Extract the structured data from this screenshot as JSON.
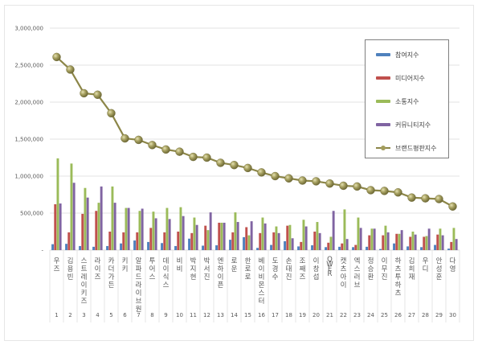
{
  "chart_data": {
    "type": "bar+line",
    "title": "",
    "xlabel": "",
    "ylabel": "",
    "ylim": [
      0,
      3000000
    ],
    "yticks": [
      "-",
      "500,000",
      "1,000,000",
      "1,500,000",
      "2,000,000",
      "2,500,000",
      "3,000,000"
    ],
    "grid": true,
    "legend_position": "upper right (inside)",
    "categories": [
      "우즈",
      "김용빈",
      "스트레이키즈",
      "라이즈",
      "카더가든",
      "키키",
      "알파드라이브원",
      "투어스",
      "데이식스",
      "비비",
      "박지현",
      "박서진",
      "엔하이픈",
      "로운",
      "한로로",
      "베이비몬스터",
      "도경수",
      "손태진",
      "조째즈",
      "이창섭",
      "QWER",
      "캣츠아이",
      "엑스러브",
      "정승환",
      "이무진",
      "하츠투하츠",
      "김희재",
      "우디",
      "안성훈",
      "다영"
    ],
    "ranks": [
      1,
      2,
      3,
      4,
      5,
      6,
      7,
      8,
      9,
      10,
      11,
      12,
      13,
      14,
      15,
      16,
      17,
      18,
      19,
      20,
      21,
      22,
      23,
      24,
      25,
      26,
      27,
      28,
      29,
      30
    ],
    "series": [
      {
        "name": "참여지수",
        "type": "bar",
        "color": "#4f81bd",
        "values": [
          80000,
          85000,
          55000,
          45000,
          55000,
          90000,
          130000,
          110000,
          95000,
          55000,
          155000,
          60000,
          65000,
          140000,
          175000,
          30000,
          70000,
          120000,
          50000,
          65000,
          40000,
          45000,
          40000,
          45000,
          15000,
          90000,
          50000,
          40000,
          70000,
          20000
        ]
      },
      {
        "name": "미디어지수",
        "type": "bar",
        "color": "#c0504d",
        "values": [
          620000,
          240000,
          490000,
          530000,
          250000,
          240000,
          240000,
          300000,
          240000,
          250000,
          230000,
          330000,
          370000,
          240000,
          310000,
          230000,
          240000,
          330000,
          110000,
          250000,
          100000,
          90000,
          70000,
          200000,
          200000,
          220000,
          180000,
          180000,
          210000,
          110000
        ]
      },
      {
        "name": "소통지수",
        "type": "bar",
        "color": "#9bbb59",
        "values": [
          1240000,
          1170000,
          840000,
          640000,
          860000,
          570000,
          530000,
          520000,
          570000,
          580000,
          440000,
          270000,
          370000,
          510000,
          200000,
          440000,
          320000,
          340000,
          410000,
          380000,
          180000,
          550000,
          440000,
          290000,
          330000,
          220000,
          250000,
          190000,
          290000,
          300000
        ]
      },
      {
        "name": "커뮤니티지수",
        "type": "bar",
        "color": "#8064a2",
        "values": [
          630000,
          910000,
          710000,
          860000,
          640000,
          570000,
          560000,
          430000,
          420000,
          460000,
          340000,
          510000,
          370000,
          380000,
          390000,
          360000,
          230000,
          160000,
          320000,
          230000,
          530000,
          150000,
          300000,
          290000,
          240000,
          270000,
          210000,
          290000,
          200000,
          150000
        ]
      },
      {
        "name": "브랜드평판지수",
        "type": "line",
        "color": "#8c8648",
        "values": [
          2610000,
          2440000,
          2120000,
          2100000,
          1850000,
          1510000,
          1490000,
          1420000,
          1360000,
          1330000,
          1260000,
          1250000,
          1180000,
          1150000,
          1110000,
          1050000,
          1000000,
          970000,
          940000,
          930000,
          900000,
          870000,
          860000,
          810000,
          800000,
          780000,
          710000,
          700000,
          690000,
          590000
        ]
      }
    ]
  },
  "legend": {
    "items": [
      {
        "label": "참여지수",
        "color": "#4f81bd"
      },
      {
        "label": "미디어지수",
        "color": "#c0504d"
      },
      {
        "label": "소통지수",
        "color": "#9bbb59"
      },
      {
        "label": "커뮤니티지수",
        "color": "#8064a2"
      },
      {
        "label": "브랜드평판지수",
        "color": "#8c8648"
      }
    ]
  }
}
